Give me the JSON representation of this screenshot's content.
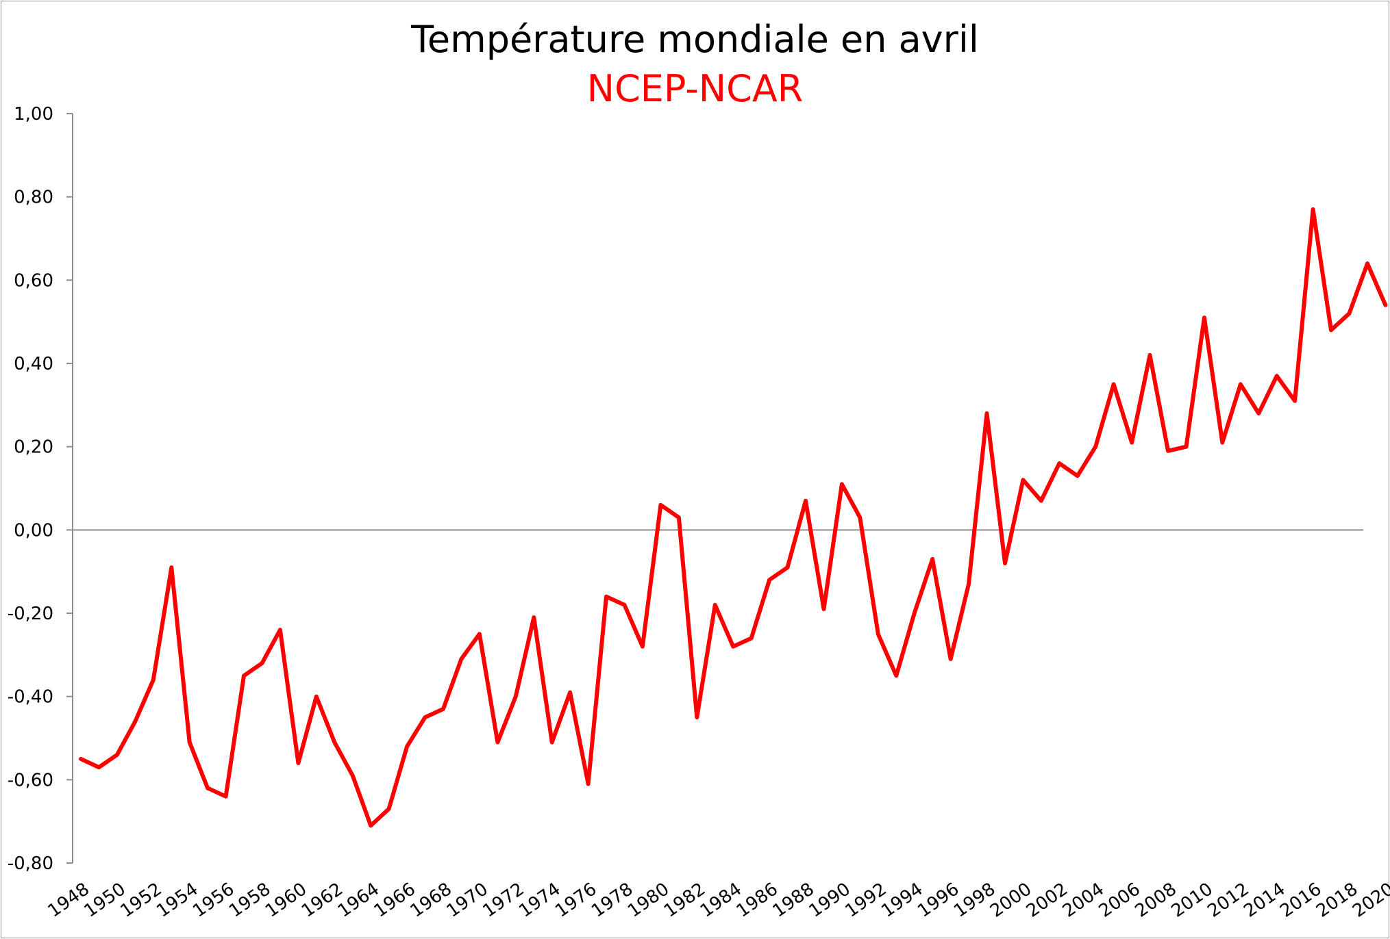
{
  "chart_data": {
    "type": "line",
    "title": "Température mondiale en avril",
    "subtitle": "NCEP-NCAR",
    "xlabel": "",
    "ylabel": "",
    "ylim": [
      -0.8,
      1.0
    ],
    "yticks": [
      "1,00",
      "0,80",
      "0,60",
      "0,40",
      "0,20",
      "0,00",
      "-0,20",
      "-0,40",
      "-0,60",
      "-0,80"
    ],
    "ytick_values": [
      1.0,
      0.8,
      0.6,
      0.4,
      0.2,
      0.0,
      -0.2,
      -0.4,
      -0.6,
      -0.8
    ],
    "xtick_labels": [
      "1948",
      "1950",
      "1952",
      "1954",
      "1956",
      "1958",
      "1960",
      "1962",
      "1964",
      "1966",
      "1968",
      "1970",
      "1972",
      "1974",
      "1976",
      "1978",
      "1980",
      "1982",
      "1984",
      "1986",
      "1988",
      "1990",
      "1992",
      "1994",
      "1996",
      "1998",
      "2000",
      "2002",
      "2004",
      "2006",
      "2008",
      "2010",
      "2012",
      "2014",
      "2016",
      "2018",
      "2020"
    ],
    "x": [
      1948,
      1949,
      1950,
      1951,
      1952,
      1953,
      1954,
      1955,
      1956,
      1957,
      1958,
      1959,
      1960,
      1961,
      1962,
      1963,
      1964,
      1965,
      1966,
      1967,
      1968,
      1969,
      1970,
      1971,
      1972,
      1973,
      1974,
      1975,
      1976,
      1977,
      1978,
      1979,
      1980,
      1981,
      1982,
      1983,
      1984,
      1985,
      1986,
      1987,
      1988,
      1989,
      1990,
      1991,
      1992,
      1993,
      1994,
      1995,
      1996,
      1997,
      1998,
      1999,
      2000,
      2001,
      2002,
      2003,
      2004,
      2005,
      2006,
      2007,
      2008,
      2009,
      2010,
      2011,
      2012,
      2013,
      2014,
      2015,
      2016,
      2017,
      2018,
      2019,
      2020
    ],
    "series": [
      {
        "name": "NCEP-NCAR",
        "color": "#ff0000",
        "values": [
          -0.55,
          -0.57,
          -0.54,
          -0.46,
          -0.36,
          -0.09,
          -0.51,
          -0.62,
          -0.64,
          -0.35,
          -0.32,
          -0.24,
          -0.56,
          -0.4,
          -0.51,
          -0.59,
          -0.71,
          -0.67,
          -0.52,
          -0.45,
          -0.43,
          -0.31,
          -0.25,
          -0.51,
          -0.4,
          -0.21,
          -0.51,
          -0.39,
          -0.61,
          -0.16,
          -0.18,
          -0.28,
          0.06,
          0.03,
          -0.45,
          -0.18,
          -0.28,
          -0.26,
          -0.12,
          -0.09,
          0.07,
          -0.19,
          0.11,
          0.03,
          -0.25,
          -0.35,
          -0.2,
          -0.07,
          -0.31,
          -0.13,
          0.28,
          -0.08,
          0.12,
          0.07,
          0.16,
          0.13,
          0.2,
          0.35,
          0.21,
          0.42,
          0.19,
          0.2,
          0.51,
          0.21,
          0.35,
          0.28,
          0.37,
          0.31,
          0.77,
          0.48,
          0.52,
          0.64,
          0.54
        ]
      }
    ],
    "zero_line": true,
    "grid": false,
    "legend": "none"
  }
}
